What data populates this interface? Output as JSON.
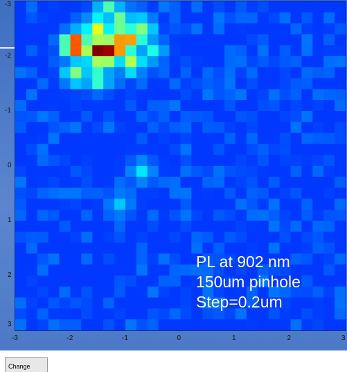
{
  "chart_data": {
    "type": "heatmap",
    "xlim": [
      -3,
      3
    ],
    "ylim": [
      -3,
      3
    ],
    "y_axis_inverted": true,
    "x_ticks": [
      "-3",
      "-2",
      "-1",
      "0",
      "1",
      "2",
      "3"
    ],
    "y_ticks": [
      "-3",
      "-2",
      "-1",
      "0",
      "1",
      "2",
      "3"
    ],
    "grid_resolution": 30,
    "colormap": "jet",
    "colorbar": false,
    "background_level": 0.18,
    "peaks": [
      {
        "x": -1.9,
        "y": -2.2,
        "value": 0.93
      },
      {
        "x": -1.5,
        "y": -2.1,
        "value": 1.0
      },
      {
        "x": -1.3,
        "y": -2.1,
        "value": 0.97
      },
      {
        "x": -1.1,
        "y": -2.2,
        "value": 0.85
      },
      {
        "x": -0.9,
        "y": -2.3,
        "value": 0.72
      },
      {
        "x": -1.5,
        "y": -2.5,
        "value": 0.6
      },
      {
        "x": -1.1,
        "y": -2.6,
        "value": 0.55
      },
      {
        "x": -0.7,
        "y": -2.5,
        "value": 0.5
      },
      {
        "x": -1.3,
        "y": -2.9,
        "value": 0.45
      },
      {
        "x": -1.9,
        "y": -1.7,
        "value": 0.5
      },
      {
        "x": -1.5,
        "y": -1.6,
        "value": 0.48
      },
      {
        "x": -0.9,
        "y": -1.9,
        "value": 0.55
      },
      {
        "x": -0.5,
        "y": -2.1,
        "value": 0.4
      },
      {
        "x": -0.7,
        "y": 0.1,
        "value": 0.35
      },
      {
        "x": -1.1,
        "y": 0.7,
        "value": 0.32
      }
    ],
    "annotation": [
      "PL at 902 nm",
      "150um pinhole",
      "Step=0.2um"
    ]
  },
  "controls": {
    "change_label": "Change"
  }
}
